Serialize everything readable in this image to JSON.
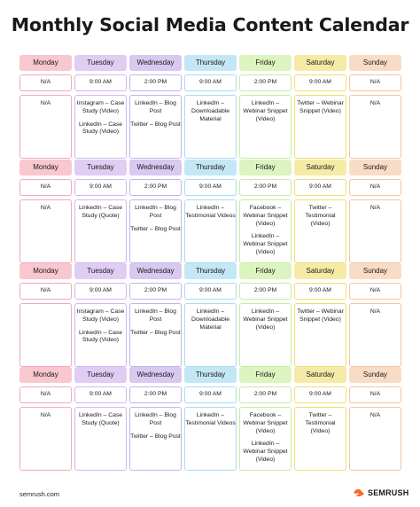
{
  "title": "Monthly Social Media Content Calendar",
  "days": [
    "Monday",
    "Tuesday",
    "Wednesday",
    "Thursday",
    "Friday",
    "Saturday",
    "Sunday"
  ],
  "header_colors": [
    "#f9c7cf",
    "#e0cdf3",
    "#d8c9f0",
    "#c4e7f5",
    "#dcf4c0",
    "#f6eba6",
    "#f9dcc6"
  ],
  "border_colors": [
    "#f3a9b6",
    "#d2b6ef",
    "#c6b3ec",
    "#a8dcf2",
    "#c9ec9c",
    "#eedd74",
    "#f4c4a2"
  ],
  "weeks": [
    {
      "times": [
        "N/A",
        "9:00 AM",
        "2:00 PM",
        "9:00 AM",
        "2:00 PM",
        "9:00 AM",
        "N/A"
      ],
      "content": [
        [
          "N/A"
        ],
        [
          "Instagram – Case Study (Video)",
          "LinkedIn – Case Study (Video)"
        ],
        [
          "LinkedIn – Blog Post",
          "Twitter – Blog Post"
        ],
        [
          "LinkedIn – Downloadable Material"
        ],
        [
          "LinkedIn – Webinar Snippet (Video)"
        ],
        [
          "Twitter – Webinar Snippet (Video)"
        ],
        [
          "N/A"
        ]
      ]
    },
    {
      "times": [
        "N/A",
        "9:00 AM",
        "2:00 PM",
        "9:00 AM",
        "2:00 PM",
        "9:00 AM",
        "N/A"
      ],
      "content": [
        [
          "N/A"
        ],
        [
          "LinkedIn – Case Study (Quote)"
        ],
        [
          "LinkedIn – Blog Post",
          "Twitter – Blog Post"
        ],
        [
          "LinkedIn – Testimonial Videos"
        ],
        [
          "Facebook – Webinar Snippet (Video)",
          "LinkedIn – Webinar Snippet (Video)"
        ],
        [
          "Twitter – Testimonial (Video)"
        ],
        [
          "N/A"
        ]
      ]
    },
    {
      "times": [
        "N/A",
        "9:00 AM",
        "2:00 PM",
        "9:00 AM",
        "2:00 PM",
        "9:00 AM",
        "N/A"
      ],
      "content": [
        [],
        [
          "Instagram – Case Study (Video)",
          "LinkedIn – Case Study (Video)"
        ],
        [
          "LinkedIn – Blog Post",
          "Twitter – Blog Post"
        ],
        [
          "LinkedIn – Downloadable Material"
        ],
        [
          "LinkedIn – Webinar Snippet (Video)"
        ],
        [
          "Twitter – Webinar Snippet (Video)"
        ],
        [
          "N/A"
        ]
      ]
    },
    {
      "times": [
        "N/A",
        "9:00 AM",
        "2:00 PM",
        "9:00 AM",
        "2:00 PM",
        "9:00 AM",
        "N/A"
      ],
      "content": [
        [
          "N/A"
        ],
        [
          "LinkedIn – Case Study (Quote)"
        ],
        [
          "LinkedIn – Blog Post",
          "Twitter – Blog Post"
        ],
        [
          "LinkedIn – Testimonial Videos"
        ],
        [
          "Facebook – Webinar Snippet (Video)",
          "LinkedIn – Webinar Snippet (Video)"
        ],
        [
          "Twitter – Testimonial (Video)"
        ],
        [
          "N/A"
        ]
      ]
    }
  ],
  "footer": {
    "site": "semrush.com",
    "logo_text": "SEMRUSH",
    "logo_color": "#ff642d"
  }
}
